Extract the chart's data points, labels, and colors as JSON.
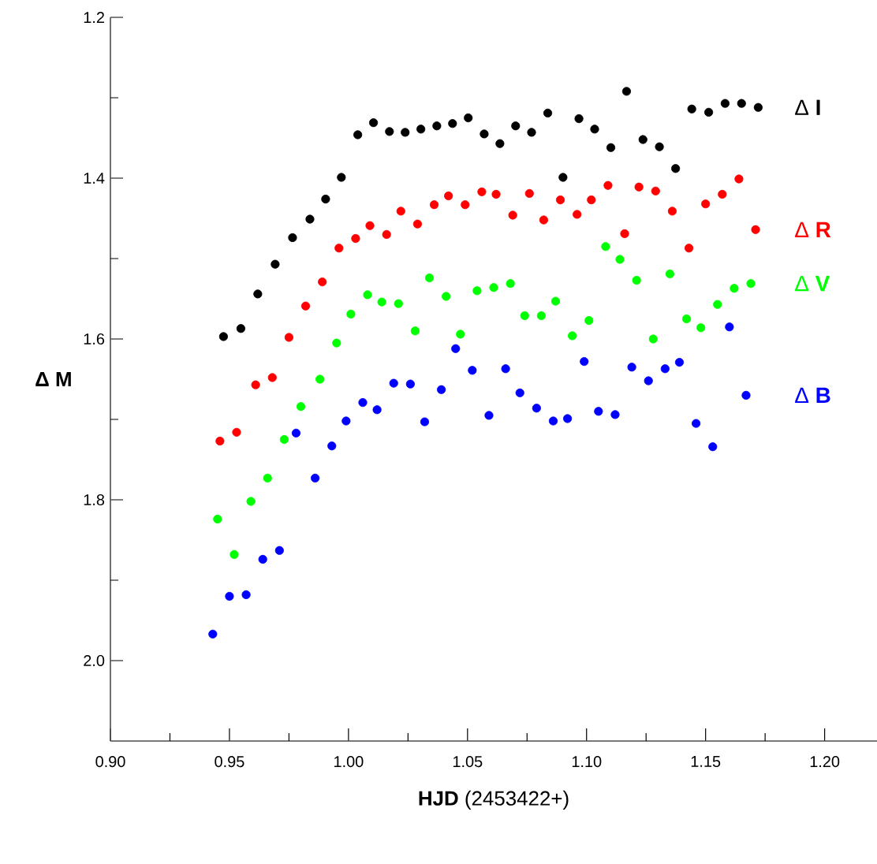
{
  "chart_data": {
    "type": "scatter",
    "xlabel": "**HJD** (2453422+)",
    "ylabel": "Δ M",
    "xlim": [
      0.9,
      1.222
    ],
    "ylim": [
      2.1,
      1.2
    ],
    "xticks": [
      {
        "value": 0.9,
        "label": "0.90"
      },
      {
        "value": 0.925,
        "label": null
      },
      {
        "value": 0.95,
        "label": "0.95"
      },
      {
        "value": 0.975,
        "label": null
      },
      {
        "value": 1.0,
        "label": "1.00"
      },
      {
        "value": 1.025,
        "label": null
      },
      {
        "value": 1.05,
        "label": "1.05"
      },
      {
        "value": 1.075,
        "label": null
      },
      {
        "value": 1.1,
        "label": "1.10"
      },
      {
        "value": 1.125,
        "label": null
      },
      {
        "value": 1.15,
        "label": "1.15"
      },
      {
        "value": 1.175,
        "label": null
      },
      {
        "value": 1.2,
        "label": "1.20"
      }
    ],
    "yticks": [
      {
        "value": 1.2,
        "label": "1.2"
      },
      {
        "value": 1.3,
        "label": null
      },
      {
        "value": 1.4,
        "label": "1.4"
      },
      {
        "value": 1.5,
        "label": null
      },
      {
        "value": 1.6,
        "label": "1.6"
      },
      {
        "value": 1.7,
        "label": null
      },
      {
        "value": 1.8,
        "label": "1.8"
      },
      {
        "value": 1.9,
        "label": null
      },
      {
        "value": 2.0,
        "label": "2.0"
      }
    ],
    "grid": false,
    "series": [
      {
        "name": "Δ **I**",
        "color": "#000000",
        "x": [
          0.9475,
          0.9548,
          0.9619,
          0.9692,
          0.9765,
          0.9838,
          0.9904,
          0.997,
          1.0039,
          1.0105,
          1.0172,
          1.0238,
          1.0304,
          1.0371,
          1.0437,
          1.0503,
          1.057,
          1.0636,
          1.0702,
          1.0769,
          1.0837,
          1.0901,
          1.0968,
          1.1034,
          1.1102,
          1.1168,
          1.1237,
          1.1306,
          1.1374,
          1.1442,
          1.1513,
          1.1582,
          1.1651,
          1.1721
        ],
        "values": [
          1.597,
          1.587,
          1.544,
          1.507,
          1.474,
          1.451,
          1.426,
          1.399,
          1.346,
          1.331,
          1.342,
          1.343,
          1.339,
          1.335,
          1.332,
          1.325,
          1.345,
          1.357,
          1.335,
          1.343,
          1.319,
          1.399,
          1.326,
          1.339,
          1.362,
          1.292,
          1.352,
          1.361,
          1.388,
          1.314,
          1.318,
          1.307,
          1.307,
          1.312
        ]
      },
      {
        "name": "Δ **R**",
        "color": "#ff0000",
        "x": [
          0.946,
          0.953,
          0.961,
          0.968,
          0.975,
          0.982,
          0.989,
          0.996,
          1.003,
          1.009,
          1.016,
          1.022,
          1.029,
          1.036,
          1.042,
          1.049,
          1.056,
          1.062,
          1.069,
          1.076,
          1.082,
          1.089,
          1.096,
          1.102,
          1.109,
          1.116,
          1.122,
          1.129,
          1.136,
          1.143,
          1.15,
          1.157,
          1.164,
          1.171
        ],
        "values": [
          1.727,
          1.716,
          1.657,
          1.648,
          1.598,
          1.559,
          1.529,
          1.487,
          1.475,
          1.459,
          1.47,
          1.441,
          1.457,
          1.433,
          1.422,
          1.433,
          1.417,
          1.42,
          1.446,
          1.419,
          1.452,
          1.427,
          1.445,
          1.427,
          1.409,
          1.469,
          1.411,
          1.416,
          1.441,
          1.487,
          1.432,
          1.42,
          1.401,
          1.464
        ]
      },
      {
        "name": "Δ **V**",
        "color": "#00ff00",
        "x": [
          0.945,
          0.952,
          0.959,
          0.966,
          0.973,
          0.98,
          0.988,
          0.995,
          1.001,
          1.008,
          1.014,
          1.021,
          1.028,
          1.034,
          1.041,
          1.047,
          1.054,
          1.061,
          1.068,
          1.074,
          1.081,
          1.087,
          1.094,
          1.101,
          1.108,
          1.114,
          1.121,
          1.128,
          1.135,
          1.142,
          1.148,
          1.155,
          1.162,
          1.169
        ],
        "values": [
          1.824,
          1.868,
          1.802,
          1.773,
          1.725,
          1.684,
          1.65,
          1.605,
          1.569,
          1.545,
          1.554,
          1.556,
          1.59,
          1.524,
          1.547,
          1.594,
          1.54,
          1.536,
          1.531,
          1.571,
          1.571,
          1.553,
          1.596,
          1.577,
          1.485,
          1.501,
          1.527,
          1.6,
          1.519,
          1.575,
          1.586,
          1.557,
          1.537,
          1.531
        ]
      },
      {
        "name": "Δ **B**",
        "color": "#0000ff",
        "x": [
          0.943,
          0.95,
          0.957,
          0.964,
          0.971,
          0.978,
          0.986,
          0.993,
          0.999,
          1.006,
          1.012,
          1.019,
          1.026,
          1.032,
          1.039,
          1.045,
          1.052,
          1.059,
          1.066,
          1.072,
          1.079,
          1.086,
          1.092,
          1.099,
          1.105,
          1.112,
          1.119,
          1.126,
          1.133,
          1.139,
          1.146,
          1.153,
          1.16,
          1.167
        ],
        "values": [
          1.967,
          1.92,
          1.918,
          1.874,
          1.863,
          1.717,
          1.773,
          1.733,
          1.702,
          1.679,
          1.688,
          1.655,
          1.656,
          1.703,
          1.663,
          1.612,
          1.639,
          1.695,
          1.637,
          1.667,
          1.686,
          1.702,
          1.699,
          1.628,
          1.69,
          1.694,
          1.635,
          1.652,
          1.637,
          1.629,
          1.705,
          1.734,
          1.585,
          1.67
        ]
      }
    ]
  }
}
